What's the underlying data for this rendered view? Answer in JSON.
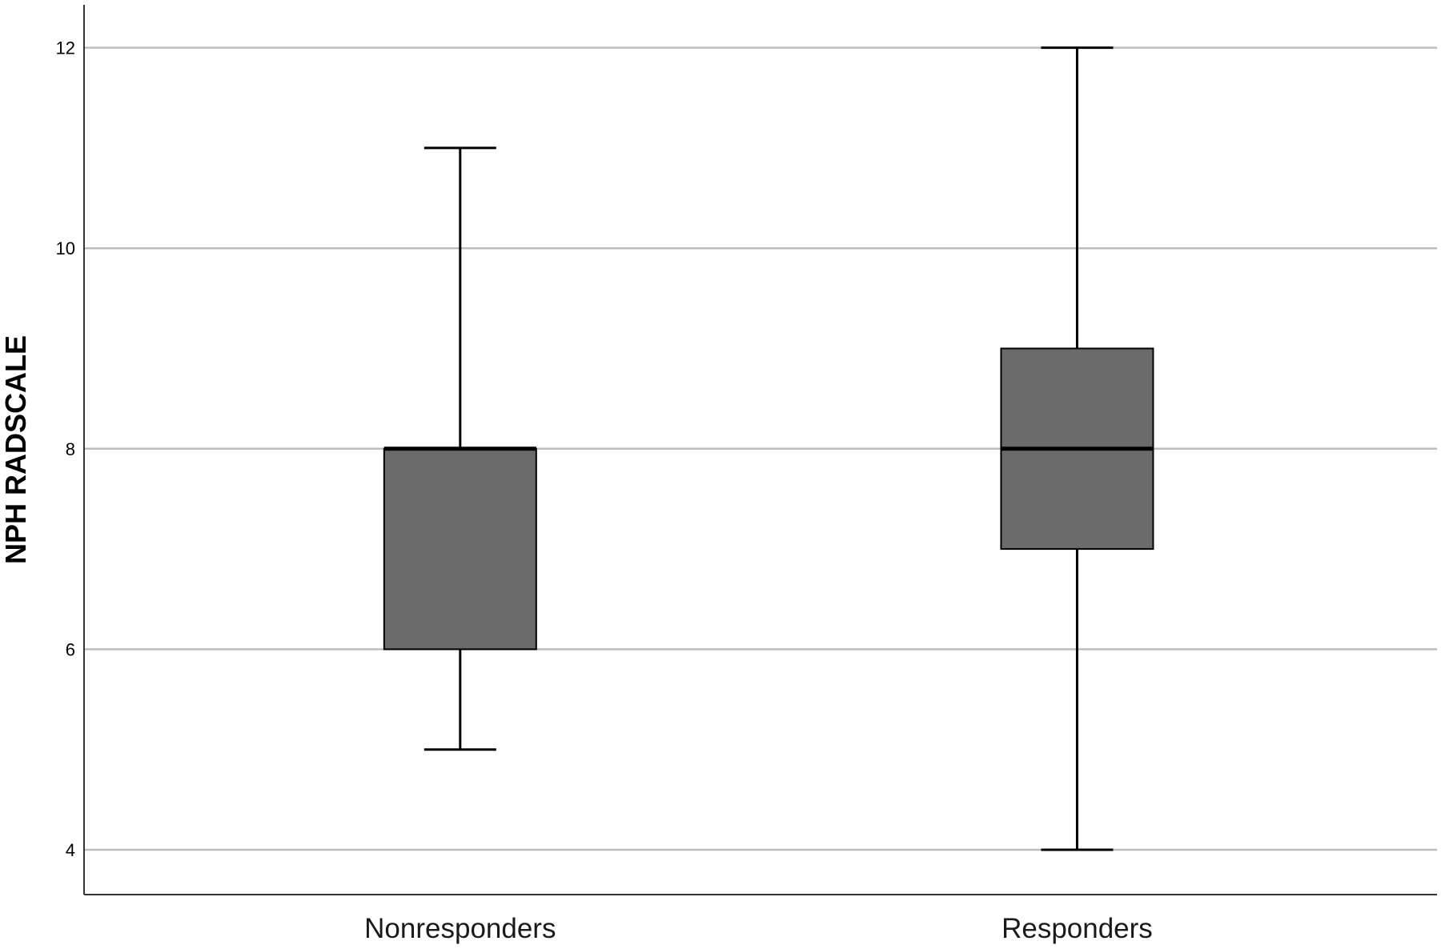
{
  "chart_data": {
    "type": "box",
    "title": "",
    "xlabel": "",
    "ylabel": "NPH RADSCALE",
    "ylim": [
      3.6,
      12.45
    ],
    "yticks": [
      4,
      6,
      8,
      10,
      12
    ],
    "ytick_labels": [
      "4",
      "6",
      "8",
      "10",
      "12"
    ],
    "grid": "horizontal",
    "legend": "none",
    "box_color": "#6b6b6b",
    "gridline_color": "#bdbdbd",
    "axis_color": "#333333",
    "categories": [
      "Nonresponders",
      "Responders"
    ],
    "boxes": [
      {
        "category": "Nonresponders",
        "min": 5,
        "q1": 6,
        "median": 8,
        "q3": 8,
        "max": 11
      },
      {
        "category": "Responders",
        "min": 4,
        "q1": 7,
        "median": 8,
        "q3": 9,
        "max": 12
      }
    ]
  }
}
